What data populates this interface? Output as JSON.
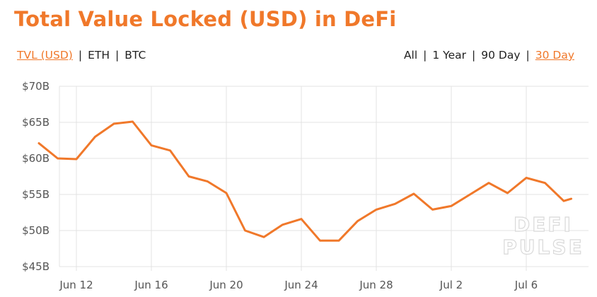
{
  "title": "Total Value Locked (USD) in DeFi",
  "metric_toggles": [
    {
      "label": "TVL (USD)",
      "active": true
    },
    {
      "label": "ETH",
      "active": false
    },
    {
      "label": "BTC",
      "active": false
    }
  ],
  "range_toggles": [
    {
      "label": "All",
      "active": false
    },
    {
      "label": "1 Year",
      "active": false
    },
    {
      "label": "90 Day",
      "active": false
    },
    {
      "label": "30 Day",
      "active": true
    }
  ],
  "separator": "|",
  "watermark": [
    "DEFI",
    "PULSE"
  ],
  "colors": {
    "accent": "#f0782a",
    "line": "#f0782a",
    "grid": "#e3e3e3",
    "text": "#222222"
  },
  "chart_data": {
    "type": "line",
    "title": "Total Value Locked (USD) in DeFi",
    "xlabel": "",
    "ylabel": "",
    "x_start": "Jun 10",
    "x_end": "Jul 9",
    "x_ticks": [
      {
        "label": "Jun 12",
        "day": 2
      },
      {
        "label": "Jun 16",
        "day": 6
      },
      {
        "label": "Jun 20",
        "day": 10
      },
      {
        "label": "Jun 24",
        "day": 14
      },
      {
        "label": "Jun 28",
        "day": 18
      },
      {
        "label": "Jul 2",
        "day": 22
      },
      {
        "label": "Jul 6",
        "day": 26
      }
    ],
    "y_ticks": [
      {
        "label": "$45B",
        "value": 45
      },
      {
        "label": "$50B",
        "value": 50
      },
      {
        "label": "$55B",
        "value": 55
      },
      {
        "label": "$60B",
        "value": 60
      },
      {
        "label": "$65B",
        "value": 65
      },
      {
        "label": "$70B",
        "value": 70
      }
    ],
    "ylim": [
      45,
      70
    ],
    "grid": true,
    "y_unit": "billion USD",
    "series": [
      {
        "values": [
          {
            "day": 0,
            "y": 62.1
          },
          {
            "day": 1,
            "y": 60.0
          },
          {
            "day": 2,
            "y": 59.9
          },
          {
            "day": 3,
            "y": 63.0
          },
          {
            "day": 4,
            "y": 64.8
          },
          {
            "day": 5,
            "y": 65.1
          },
          {
            "day": 6,
            "y": 61.8
          },
          {
            "day": 7,
            "y": 61.1
          },
          {
            "day": 8,
            "y": 57.5
          },
          {
            "day": 9,
            "y": 56.8
          },
          {
            "day": 10,
            "y": 55.2
          },
          {
            "day": 11,
            "y": 50.0
          },
          {
            "day": 12,
            "y": 49.1
          },
          {
            "day": 13,
            "y": 50.8
          },
          {
            "day": 14,
            "y": 51.6
          },
          {
            "day": 15,
            "y": 48.6
          },
          {
            "day": 16,
            "y": 48.6
          },
          {
            "day": 17,
            "y": 51.3
          },
          {
            "day": 18,
            "y": 52.9
          },
          {
            "day": 19,
            "y": 53.7
          },
          {
            "day": 20,
            "y": 55.1
          },
          {
            "day": 21,
            "y": 52.9
          },
          {
            "day": 22,
            "y": 53.4
          },
          {
            "day": 23,
            "y": 55.0
          },
          {
            "day": 24,
            "y": 56.6
          },
          {
            "day": 25,
            "y": 55.2
          },
          {
            "day": 26,
            "y": 57.3
          },
          {
            "day": 27,
            "y": 56.6
          },
          {
            "day": 28,
            "y": 54.1
          },
          {
            "day": 28.4,
            "y": 54.4
          }
        ]
      }
    ]
  }
}
